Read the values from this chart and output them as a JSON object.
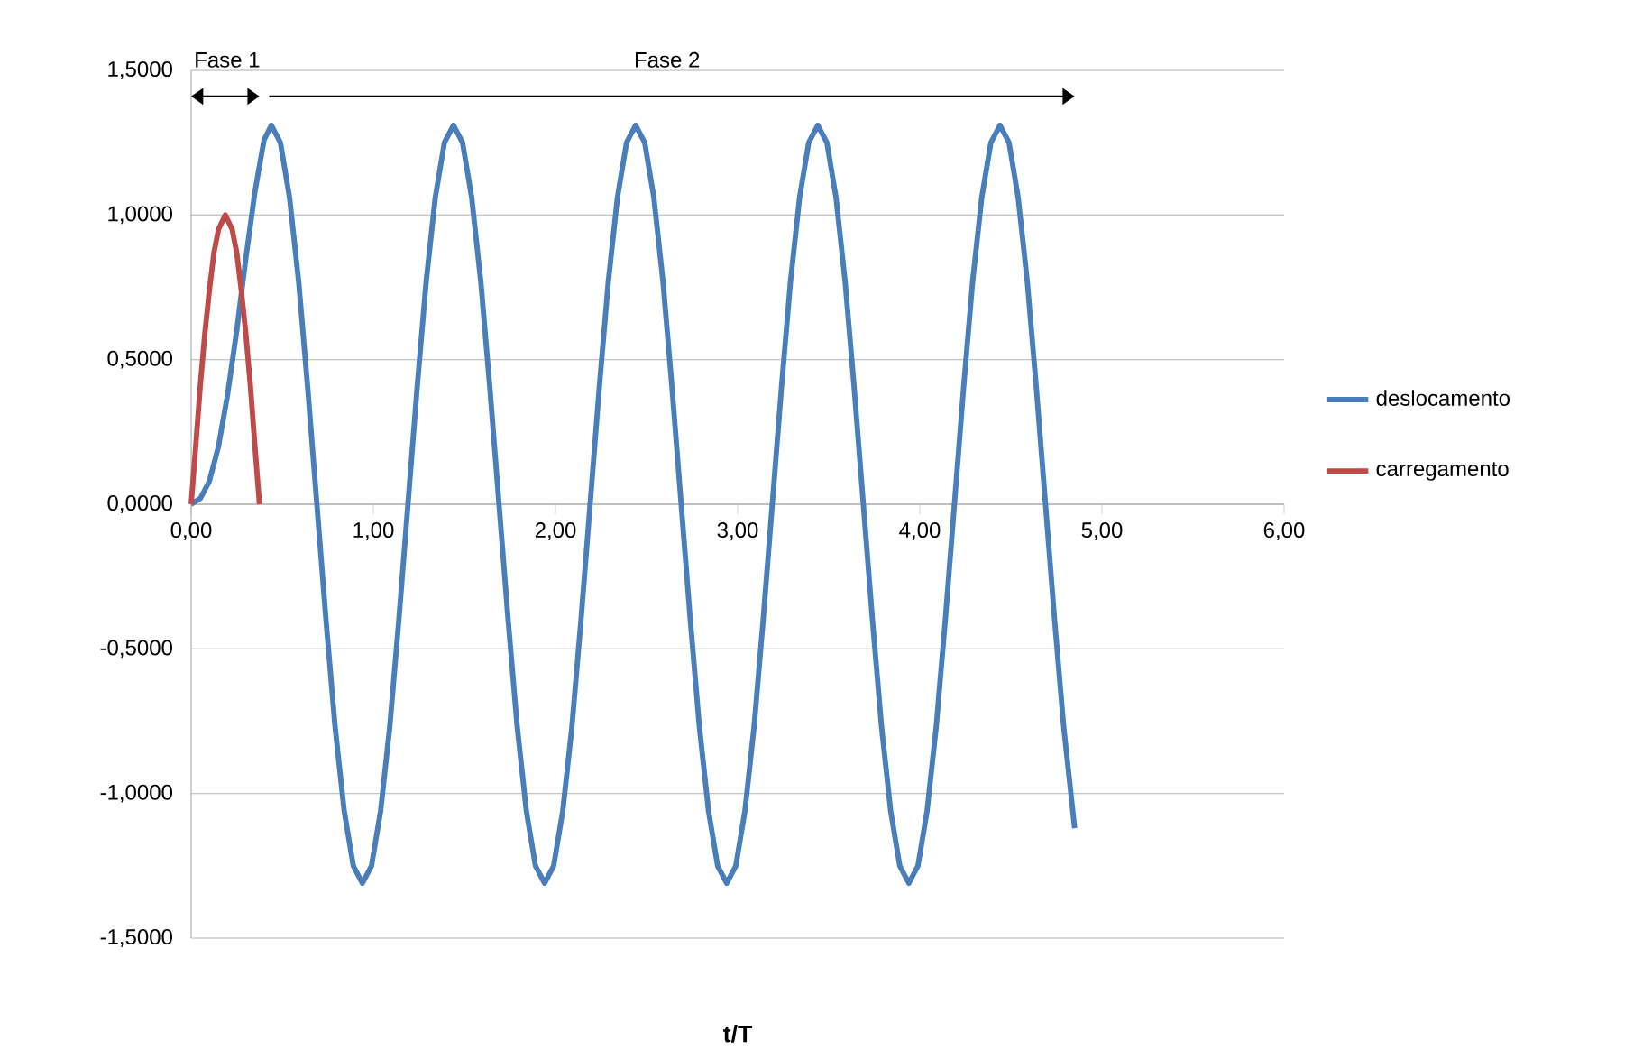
{
  "chart_data": {
    "type": "line",
    "xlabel": "t/T",
    "legend": "right",
    "grid": "y",
    "line_style": "solid",
    "marker": "none",
    "xlim": [
      0,
      6
    ],
    "ylim": [
      -1.5,
      1.5
    ],
    "xticks": [
      {
        "value": 0,
        "label": "0,00"
      },
      {
        "value": 1,
        "label": "1,00"
      },
      {
        "value": 2,
        "label": "2,00"
      },
      {
        "value": 3,
        "label": "3,00"
      },
      {
        "value": 4,
        "label": "4,00"
      },
      {
        "value": 5,
        "label": "5,00"
      },
      {
        "value": 6,
        "label": "6,00"
      }
    ],
    "yticks": [
      {
        "value": -1.5,
        "label": "-1,5000"
      },
      {
        "value": -1,
        "label": "-1,0000"
      },
      {
        "value": -0.5,
        "label": "-0,5000"
      },
      {
        "value": 0,
        "label": "0,0000"
      },
      {
        "value": 0.5,
        "label": "0,5000"
      },
      {
        "value": 1,
        "label": "1,0000"
      },
      {
        "value": 1.5,
        "label": "1,5000"
      }
    ],
    "annotations": [
      "Fase 1",
      "Fase 2"
    ],
    "series": [
      {
        "name": "deslocamento",
        "color": "#4a7ebb",
        "x": [
          0,
          0.05,
          0.1,
          0.15,
          0.2,
          0.25,
          0.3,
          0.35,
          0.4,
          0.44,
          0.49,
          0.54,
          0.59,
          0.64,
          0.69,
          0.74,
          0.79,
          0.84,
          0.89,
          0.94,
          0.99,
          1.04,
          1.09,
          1.14,
          1.19,
          1.24,
          1.29,
          1.34,
          1.39,
          1.44,
          1.49,
          1.54,
          1.59,
          1.64,
          1.69,
          1.74,
          1.79,
          1.84,
          1.89,
          1.94,
          1.99,
          2.04,
          2.09,
          2.14,
          2.19,
          2.24,
          2.29,
          2.34,
          2.39,
          2.44,
          2.49,
          2.54,
          2.59,
          2.64,
          2.69,
          2.74,
          2.79,
          2.84,
          2.89,
          2.94,
          2.99,
          3.04,
          3.09,
          3.14,
          3.19,
          3.24,
          3.29,
          3.34,
          3.39,
          3.44,
          3.49,
          3.54,
          3.59,
          3.64,
          3.69,
          3.74,
          3.79,
          3.84,
          3.89,
          3.94,
          3.99,
          4.04,
          4.09,
          4.14,
          4.19,
          4.24,
          4.29,
          4.34,
          4.39,
          4.44,
          4.49,
          4.54,
          4.59,
          4.64,
          4.69,
          4.74,
          4.79,
          4.85
        ],
        "values": [
          0,
          0.02,
          0.08,
          0.2,
          0.38,
          0.6,
          0.85,
          1.08,
          1.26,
          1.31,
          1.25,
          1.06,
          0.77,
          0.4,
          0,
          -0.4,
          -0.77,
          -1.06,
          -1.25,
          -1.31,
          -1.25,
          -1.06,
          -0.77,
          -0.4,
          0,
          0.4,
          0.77,
          1.06,
          1.25,
          1.31,
          1.25,
          1.06,
          0.77,
          0.4,
          0,
          -0.4,
          -0.77,
          -1.06,
          -1.25,
          -1.31,
          -1.25,
          -1.06,
          -0.77,
          -0.4,
          0,
          0.4,
          0.77,
          1.06,
          1.25,
          1.31,
          1.25,
          1.06,
          0.77,
          0.4,
          0,
          -0.4,
          -0.77,
          -1.06,
          -1.25,
          -1.31,
          -1.25,
          -1.06,
          -0.77,
          -0.4,
          0,
          0.4,
          0.77,
          1.06,
          1.25,
          1.31,
          1.25,
          1.06,
          0.77,
          0.4,
          0,
          -0.4,
          -0.77,
          -1.06,
          -1.25,
          -1.31,
          -1.25,
          -1.06,
          -0.77,
          -0.4,
          0,
          0.4,
          0.77,
          1.06,
          1.25,
          1.31,
          1.25,
          1.06,
          0.77,
          0.4,
          0,
          -0.4,
          -0.77,
          -1.12
        ]
      },
      {
        "name": "carregamento",
        "color": "#be4b48",
        "x": [
          0,
          0.025,
          0.05,
          0.075,
          0.1,
          0.125,
          0.15,
          0.1875,
          0.225,
          0.25,
          0.275,
          0.3,
          0.325,
          0.35,
          0.375
        ],
        "values": [
          0,
          0.2,
          0.41,
          0.59,
          0.74,
          0.87,
          0.95,
          1.0,
          0.95,
          0.87,
          0.74,
          0.59,
          0.41,
          0.2,
          0
        ]
      }
    ]
  }
}
